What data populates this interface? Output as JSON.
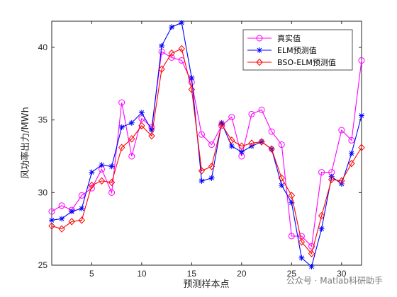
{
  "chart_data": {
    "type": "line",
    "xlabel": "预测样本点",
    "ylabel": "风功率出力/MWh",
    "xlim": [
      1,
      32
    ],
    "ylim": [
      25,
      41.8
    ],
    "xticks": [
      5,
      10,
      15,
      20,
      25,
      30
    ],
    "yticks": [
      25,
      30,
      35,
      40
    ],
    "grid": false,
    "legend_position": "top-right",
    "x": [
      1,
      2,
      3,
      4,
      5,
      6,
      7,
      8,
      9,
      10,
      11,
      12,
      13,
      14,
      15,
      16,
      17,
      18,
      19,
      20,
      21,
      22,
      23,
      24,
      25,
      26,
      27,
      28,
      29,
      30,
      31,
      32
    ],
    "series": [
      {
        "name": "真实值",
        "color": "#ff00ff",
        "marker": "circle",
        "values": [
          28.7,
          29.1,
          28.8,
          29.8,
          30.3,
          31.6,
          30.0,
          36.2,
          32.5,
          35.1,
          34.5,
          39.7,
          39.3,
          39.1,
          37.6,
          34.0,
          33.3,
          34.6,
          35.2,
          32.5,
          35.4,
          35.7,
          34.2,
          33.3,
          27.0,
          27.0,
          26.3,
          31.4,
          31.4,
          34.3,
          33.6,
          39.1
        ]
      },
      {
        "name": "ELM预测值",
        "color": "#0000ff",
        "marker": "asterisk",
        "values": [
          28.1,
          28.2,
          28.7,
          28.9,
          31.4,
          31.9,
          31.8,
          34.5,
          34.8,
          35.5,
          34.3,
          40.1,
          41.4,
          41.7,
          37.9,
          30.8,
          31.0,
          34.8,
          33.2,
          32.8,
          33.2,
          33.5,
          33.0,
          30.5,
          29.3,
          25.5,
          24.9,
          27.5,
          31.1,
          30.6,
          32.7,
          35.3
        ]
      },
      {
        "name": "BSO-ELM预测值",
        "color": "#ff0000",
        "marker": "diamond",
        "values": [
          27.7,
          27.5,
          28.0,
          28.1,
          30.5,
          30.8,
          30.7,
          33.1,
          33.7,
          34.6,
          33.9,
          38.5,
          39.6,
          39.9,
          37.1,
          31.5,
          31.8,
          34.7,
          33.6,
          33.2,
          33.4,
          33.5,
          33.0,
          31.0,
          29.8,
          26.6,
          25.8,
          28.4,
          30.9,
          30.8,
          32.0,
          33.1
        ]
      }
    ]
  },
  "watermark": {
    "text": "公众号 · Matlab科研助手"
  }
}
